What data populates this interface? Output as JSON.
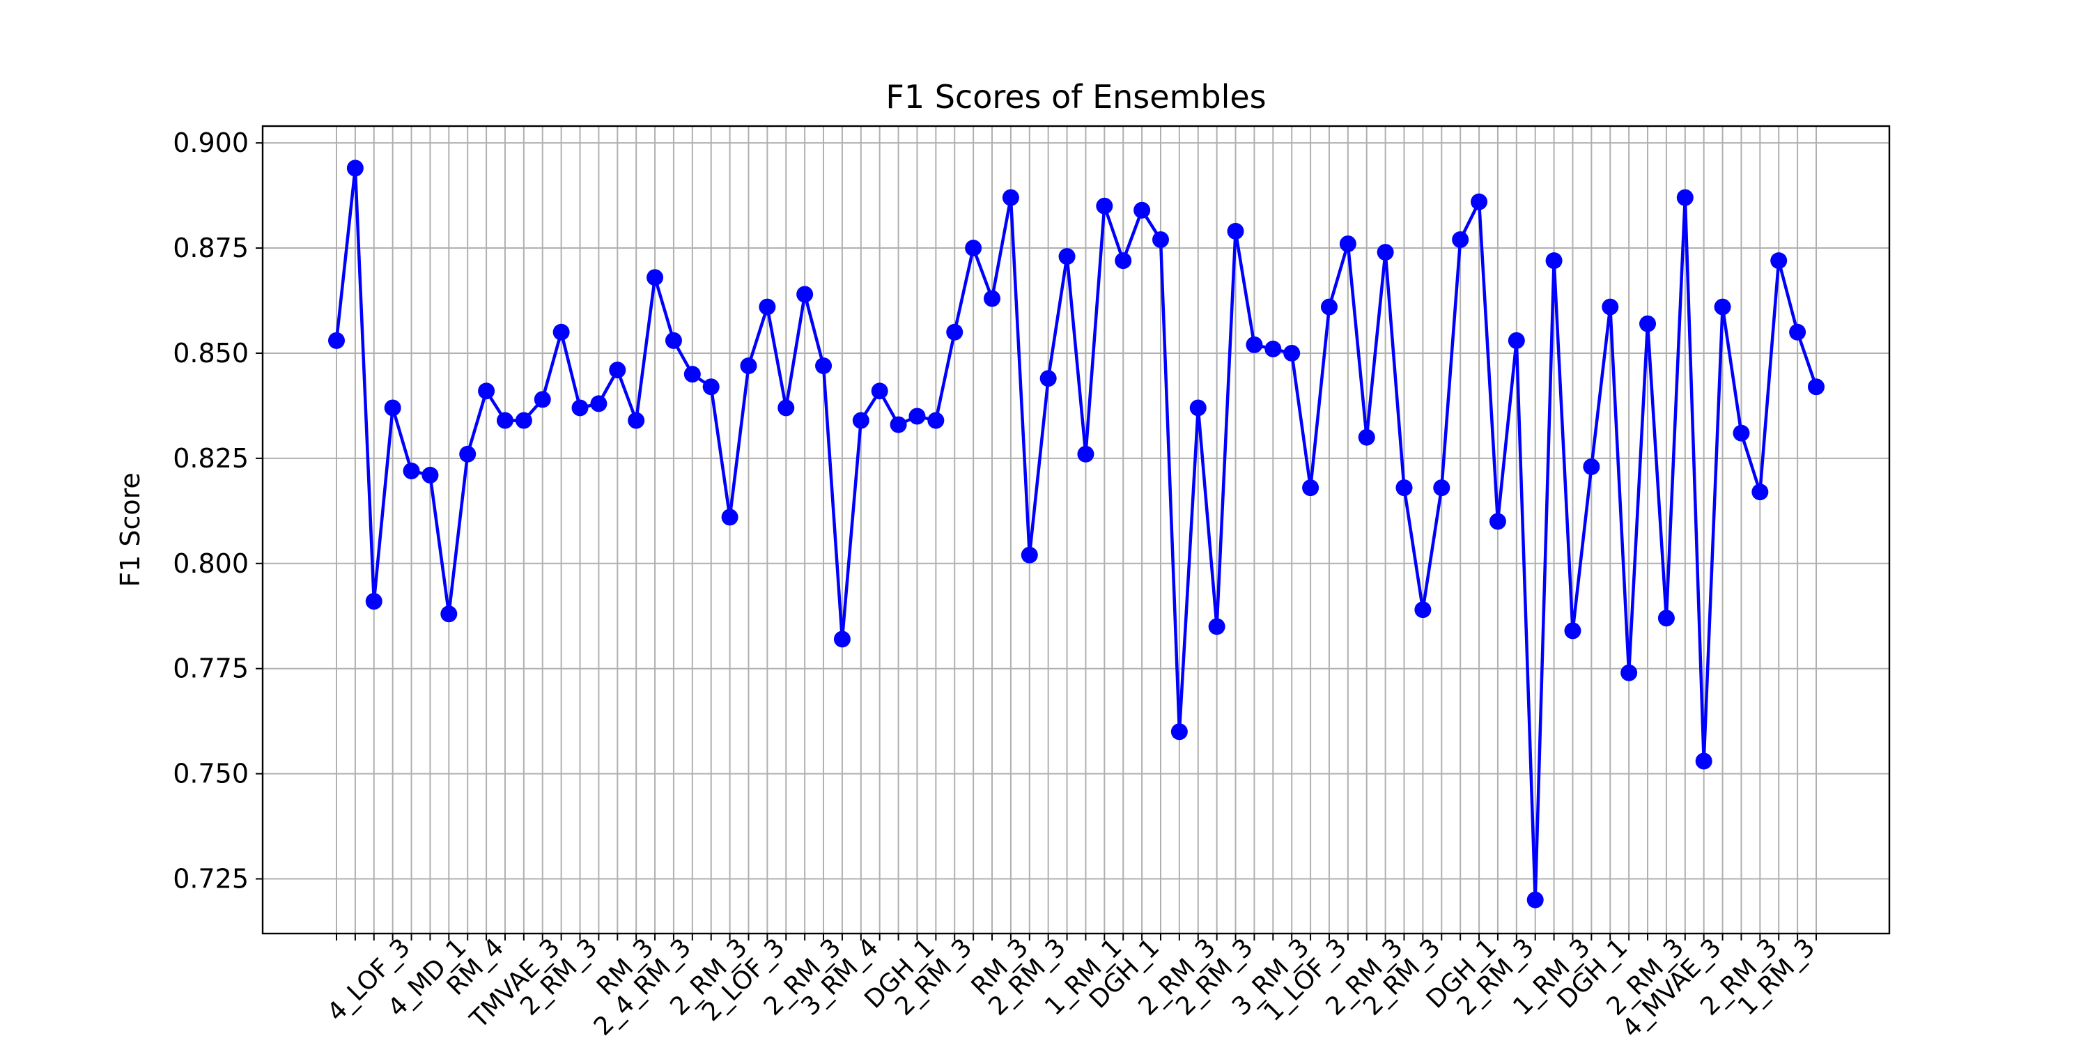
{
  "chart_data": {
    "type": "line",
    "title": "F1 Scores of Ensembles",
    "xlabel": "",
    "ylabel": "F1 Score",
    "ylim": [
      0.712,
      0.904
    ],
    "yticks": [
      0.725,
      0.75,
      0.775,
      0.8,
      0.825,
      0.85,
      0.875,
      0.9
    ],
    "ytick_labels": [
      "0.725",
      "0.750",
      "0.775",
      "0.800",
      "0.825",
      "0.850",
      "0.875",
      "0.900"
    ],
    "grid": true,
    "line_color": "#0000ff",
    "marker": "circle",
    "x_tick_labels_visible": [
      "4_LOF_3",
      "4_MD_1",
      "RM_4",
      "TMVAE_3",
      "2_RM_3",
      "RM_3",
      "2_4_RM_3",
      "2_RM_3",
      "2_LOF_3",
      "2_RM_3",
      "3_RM_4",
      "DGH_1",
      "2_RM_3",
      "RM_3",
      "2_RM_3",
      "1_RM_1",
      "DGH_1",
      "2_RM_3",
      "2_RM_3",
      "3_RM_3",
      "1_LOF_3",
      "2_RM_3",
      "2_RM_3",
      "DGH_1",
      "2_RM_3",
      "1_RM_3",
      "DGH_1",
      "2_RM_3",
      "4_MVAE_3",
      "2_RM_3",
      "1_RM_3"
    ],
    "values": [
      0.853,
      0.894,
      0.791,
      0.837,
      0.822,
      0.821,
      0.788,
      0.826,
      0.841,
      0.834,
      0.834,
      0.839,
      0.855,
      0.837,
      0.838,
      0.846,
      0.834,
      0.868,
      0.853,
      0.845,
      0.842,
      0.811,
      0.847,
      0.861,
      0.837,
      0.864,
      0.847,
      0.782,
      0.834,
      0.841,
      0.833,
      0.835,
      0.834,
      0.855,
      0.875,
      0.863,
      0.887,
      0.802,
      0.844,
      0.873,
      0.826,
      0.885,
      0.872,
      0.884,
      0.877,
      0.76,
      0.837,
      0.785,
      0.879,
      0.852,
      0.851,
      0.85,
      0.818,
      0.861,
      0.876,
      0.83,
      0.874,
      0.818,
      0.789,
      0.818,
      0.877,
      0.886,
      0.81,
      0.853,
      0.72,
      0.872,
      0.784,
      0.823,
      0.861,
      0.774,
      0.857,
      0.787,
      0.887,
      0.753,
      0.861,
      0.831,
      0.817,
      0.872,
      0.855,
      0.842
    ]
  }
}
